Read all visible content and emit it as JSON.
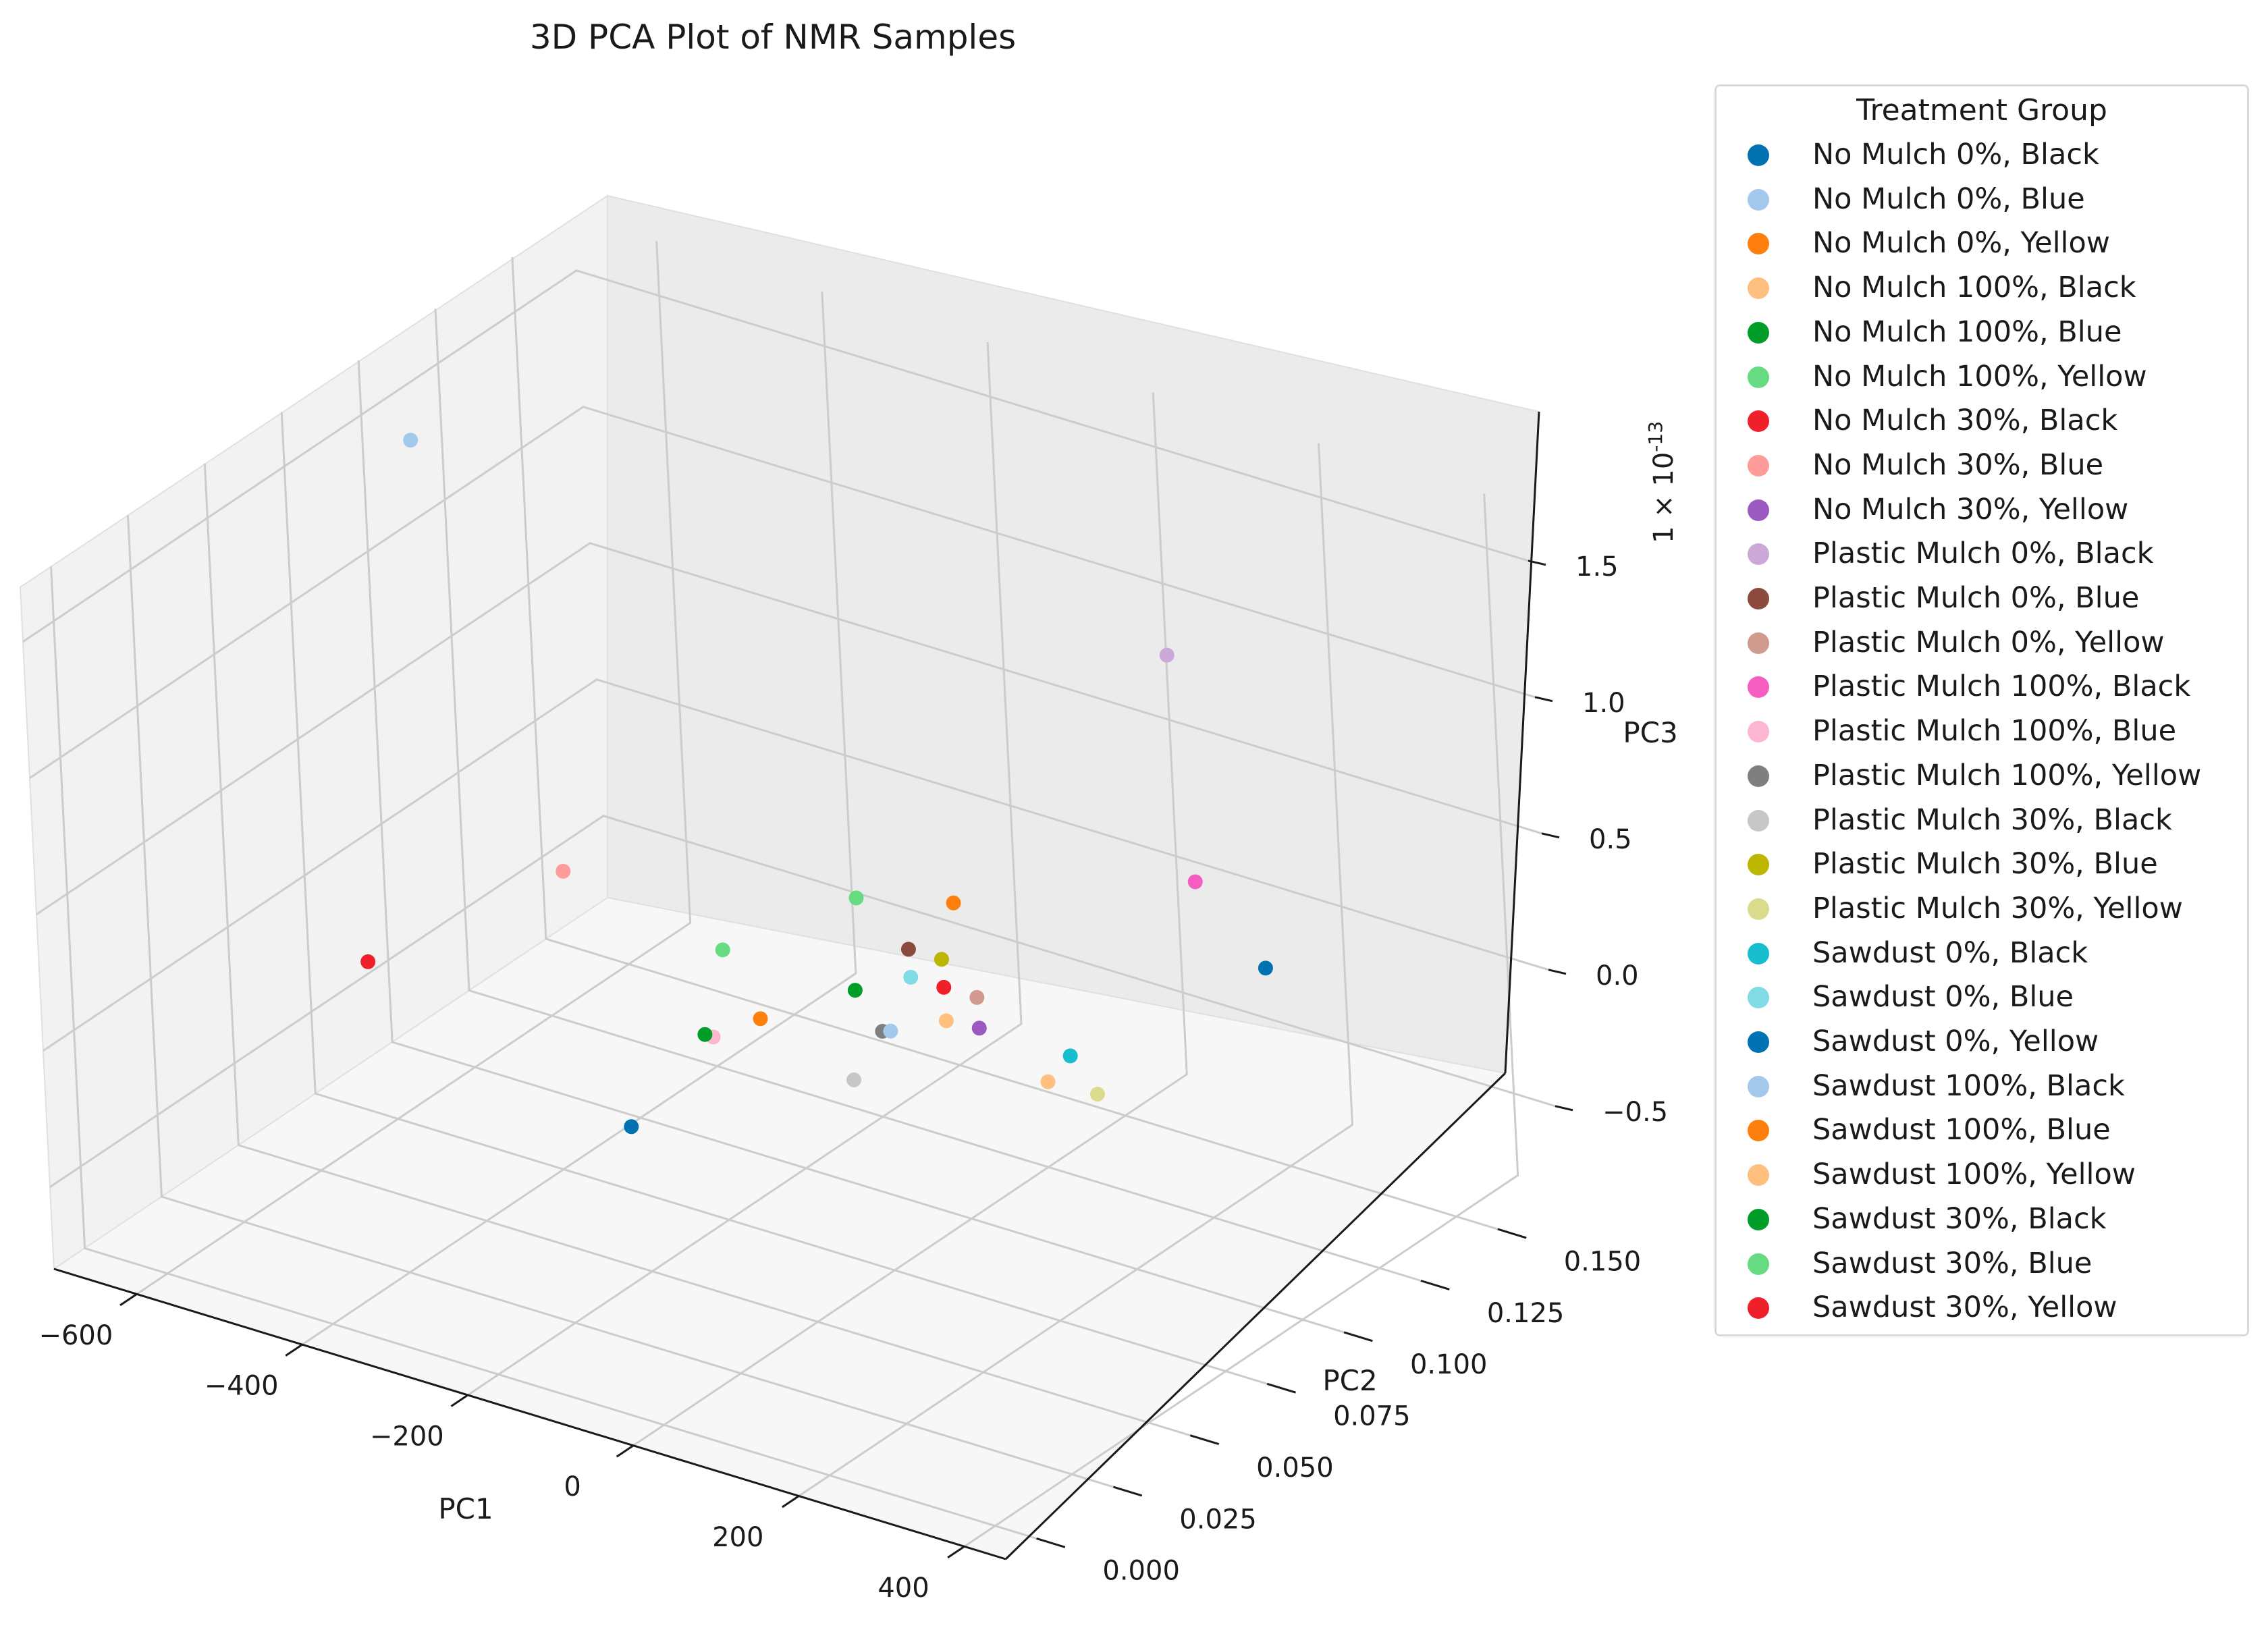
{
  "chart_data": {
    "type": "scatter",
    "projection": "3d",
    "title": "3D PCA Plot of NMR Samples",
    "xlabel": "PC1",
    "ylabel": "PC2",
    "zlabel": "PC3",
    "z_offset_label": "1 × 10",
    "z_offset_exponent": "-13",
    "x_ticks": [
      "−600",
      "−400",
      "−200",
      "0",
      "200",
      "400"
    ],
    "x_tick_values": [
      -600,
      -400,
      -200,
      0,
      200,
      400
    ],
    "y_ticks": [
      "0.000",
      "0.025",
      "0.050",
      "0.075",
      "0.100",
      "0.125",
      "0.150"
    ],
    "y_tick_values": [
      0,
      0.025,
      0.05,
      0.075,
      0.1,
      0.125,
      0.15
    ],
    "z_ticks": [
      "−0.5",
      "0.0",
      "0.5",
      "1.0",
      "1.5"
    ],
    "z_tick_values": [
      -0.5,
      0,
      0.5,
      1.0,
      1.5
    ],
    "xlim": [
      -700,
      450
    ],
    "ylim": [
      -0.01,
      0.17
    ],
    "zlim": [
      -0.8,
      1.7
    ],
    "grid": true,
    "legend_title": "Treatment Group",
    "legend_position": "right",
    "series": [
      {
        "name": "No Mulch 0%, Black",
        "color": "#0072b2",
        "points": [
          [
            -100,
            0.02,
            0.05
          ]
        ]
      },
      {
        "name": "No Mulch 0%, Blue",
        "color": "#a2c8ec",
        "points": [
          [
            -680,
            0.11,
            1.35
          ]
        ]
      },
      {
        "name": "No Mulch 0%, Yellow",
        "color": "#ff7f0e",
        "points": [
          [
            -120,
            0.13,
            0.02
          ]
        ]
      },
      {
        "name": "No Mulch 100%, Black",
        "color": "#ffbf7f",
        "points": [
          [
            180,
            0.08,
            0.02
          ]
        ]
      },
      {
        "name": "No Mulch 100%, Blue",
        "color": "#009e29",
        "points": [
          [
            -90,
            0.09,
            0.03
          ]
        ]
      },
      {
        "name": "No Mulch 100%, Yellow",
        "color": "#67db82",
        "points": [
          [
            -200,
            0.12,
            0.04
          ]
        ]
      },
      {
        "name": "No Mulch 30%, Black",
        "color": "#f0202b",
        "points": [
          [
            -20,
            0.1,
            0.03
          ]
        ]
      },
      {
        "name": "No Mulch 30%, Blue",
        "color": "#ff9c9a",
        "points": [
          [
            -480,
            0.1,
            0.03
          ]
        ]
      },
      {
        "name": "No Mulch 30%, Yellow",
        "color": "#9b59c2",
        "points": [
          [
            60,
            0.09,
            0.03
          ]
        ]
      },
      {
        "name": "Plastic Mulch 0%, Black",
        "color": "#cba8d8",
        "points": [
          [
            40,
            0.16,
            0.85
          ]
        ]
      },
      {
        "name": "Plastic Mulch 0%, Blue",
        "color": "#8c4a3e",
        "points": [
          [
            -100,
            0.11,
            0.02
          ]
        ]
      },
      {
        "name": "Plastic Mulch 0%, Yellow",
        "color": "#d19a8e",
        "points": [
          [
            20,
            0.1,
            0.03
          ]
        ]
      },
      {
        "name": "Plastic Mulch 100%, Black",
        "color": "#f55ec0",
        "points": [
          [
            100,
            0.15,
            0.15
          ]
        ]
      },
      {
        "name": "Plastic Mulch 100%, Blue",
        "color": "#fdb6d2",
        "points": [
          [
            -150,
            0.06,
            0.03
          ]
        ]
      },
      {
        "name": "Plastic Mulch 100%, Yellow",
        "color": "#7f7f7f",
        "points": [
          [
            -20,
            0.08,
            0.02
          ]
        ]
      },
      {
        "name": "Plastic Mulch 30%, Black",
        "color": "#c7c7c7",
        "points": [
          [
            20,
            0.06,
            0.03
          ]
        ]
      },
      {
        "name": "Plastic Mulch 30%, Blue",
        "color": "#bcb600",
        "points": [
          [
            -60,
            0.11,
            0.02
          ]
        ]
      },
      {
        "name": "Plastic Mulch 30%, Yellow",
        "color": "#dbdb8d",
        "points": [
          [
            240,
            0.08,
            0.03
          ]
        ]
      },
      {
        "name": "Sawdust 0%, Black",
        "color": "#17becf",
        "points": [
          [
            170,
            0.09,
            0.03
          ]
        ]
      },
      {
        "name": "Sawdust 0%, Blue",
        "color": "#80dbe6",
        "points": [
          [
            -60,
            0.1,
            0.03
          ]
        ]
      },
      {
        "name": "Sawdust 0%, Yellow",
        "color": "#0072b2",
        "points": [
          [
            220,
            0.14,
            0.02
          ]
        ]
      },
      {
        "name": "Sawdust 100%, Black",
        "color": "#a2c8ec",
        "points": [
          [
            -10,
            0.08,
            0.03
          ]
        ]
      },
      {
        "name": "Sawdust 100%, Blue",
        "color": "#ff7f0e",
        "points": [
          [
            -130,
            0.07,
            0.04
          ]
        ]
      },
      {
        "name": "Sawdust 100%, Yellow",
        "color": "#ffbf7f",
        "points": [
          [
            20,
            0.09,
            0.02
          ]
        ]
      },
      {
        "name": "Sawdust 30%, Black",
        "color": "#009e29",
        "points": [
          [
            -160,
            0.06,
            0.03
          ]
        ]
      },
      {
        "name": "Sawdust 30%, Blue",
        "color": "#67db82",
        "points": [
          [
            -250,
            0.09,
            0.03
          ]
        ]
      },
      {
        "name": "Sawdust 30%, Yellow",
        "color": "#f0202b",
        "points": [
          [
            -530,
            0.05,
            0.03
          ]
        ]
      }
    ]
  }
}
